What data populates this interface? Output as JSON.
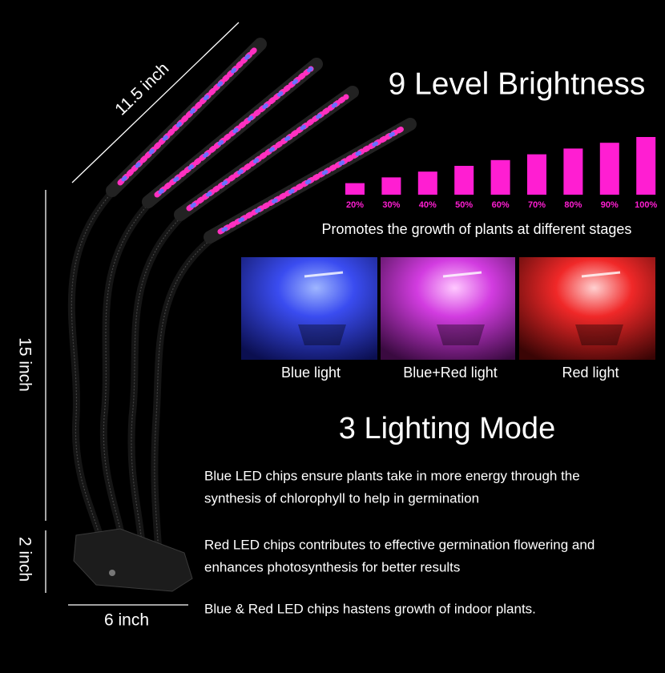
{
  "dimensions": {
    "length": "11.5 inch",
    "neck": "15 inch",
    "clip": "2 inch",
    "width": "6 inch"
  },
  "brightness": {
    "title": "9 Level Brightness",
    "levels": [
      {
        "value": 20,
        "label": "20%"
      },
      {
        "value": 30,
        "label": "30%"
      },
      {
        "value": 40,
        "label": "40%"
      },
      {
        "value": 50,
        "label": "50%"
      },
      {
        "value": 60,
        "label": "60%"
      },
      {
        "value": 70,
        "label": "70%"
      },
      {
        "value": 80,
        "label": "80%"
      },
      {
        "value": 90,
        "label": "90%"
      },
      {
        "value": 100,
        "label": "100%"
      }
    ],
    "caption": "Promotes the growth of plants at different stages"
  },
  "modes": {
    "captions": [
      "Blue light",
      "Blue+Red light",
      "Red light"
    ],
    "title": "3 Lighting Mode",
    "descriptions": [
      [
        "Blue LED chips ensure plants take in more energy through the",
        "synthesis of chlorophyll to help in germination"
      ],
      [
        "Red LED chips contributes to effective germination flowering and",
        "enhances photosynthesis for better results"
      ],
      [
        "Blue & Red LED chips hastens growth of indoor plants."
      ]
    ]
  }
}
